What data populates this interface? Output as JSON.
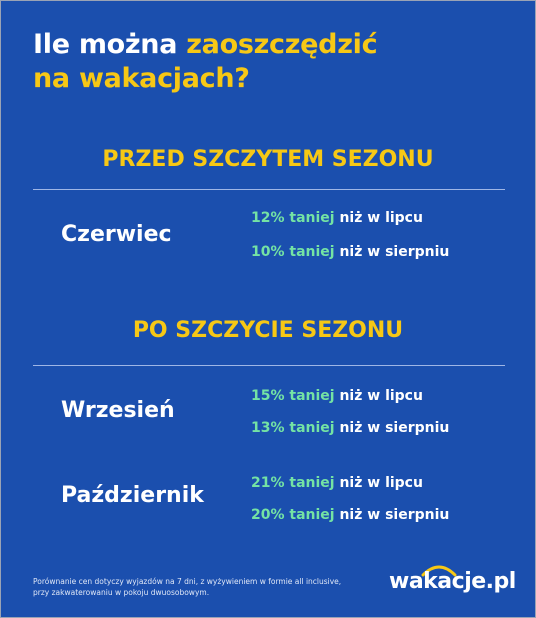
{
  "header": {
    "title_part1": "Ile można ",
    "title_highlight": "zaoszczędzić",
    "title_line2": "na wakacjach?"
  },
  "sections": [
    {
      "heading": "PRZED SZCZYTEM SEZONU",
      "rows": [
        {
          "month": "Czerwiec",
          "lines": [
            {
              "saving": "12% taniej",
              "rest": " niż w lipcu"
            },
            {
              "saving": "10% taniej",
              "rest": " niż w sierpniu"
            }
          ]
        }
      ]
    },
    {
      "heading": "PO SZCZYCIE SEZONU",
      "rows": [
        {
          "month": "Wrzesień",
          "lines": [
            {
              "saving": "15% taniej",
              "rest": " niż w lipcu"
            },
            {
              "saving": "13% taniej",
              "rest": " niż w sierpniu"
            }
          ]
        },
        {
          "month": "Październik",
          "lines": [
            {
              "saving": "21% taniej",
              "rest": " niż w lipcu"
            },
            {
              "saving": "20% taniej",
              "rest": " niż w sierpniu"
            }
          ]
        }
      ]
    }
  ],
  "footer": {
    "note_line1": "Porównanie cen dotyczy wyjazdów na 7 dni, z wyżywieniem w formie all inclusive,",
    "note_line2": "przy zakwaterowaniu w pokoju dwuosobowym.",
    "logo": "wakacje.pl"
  }
}
